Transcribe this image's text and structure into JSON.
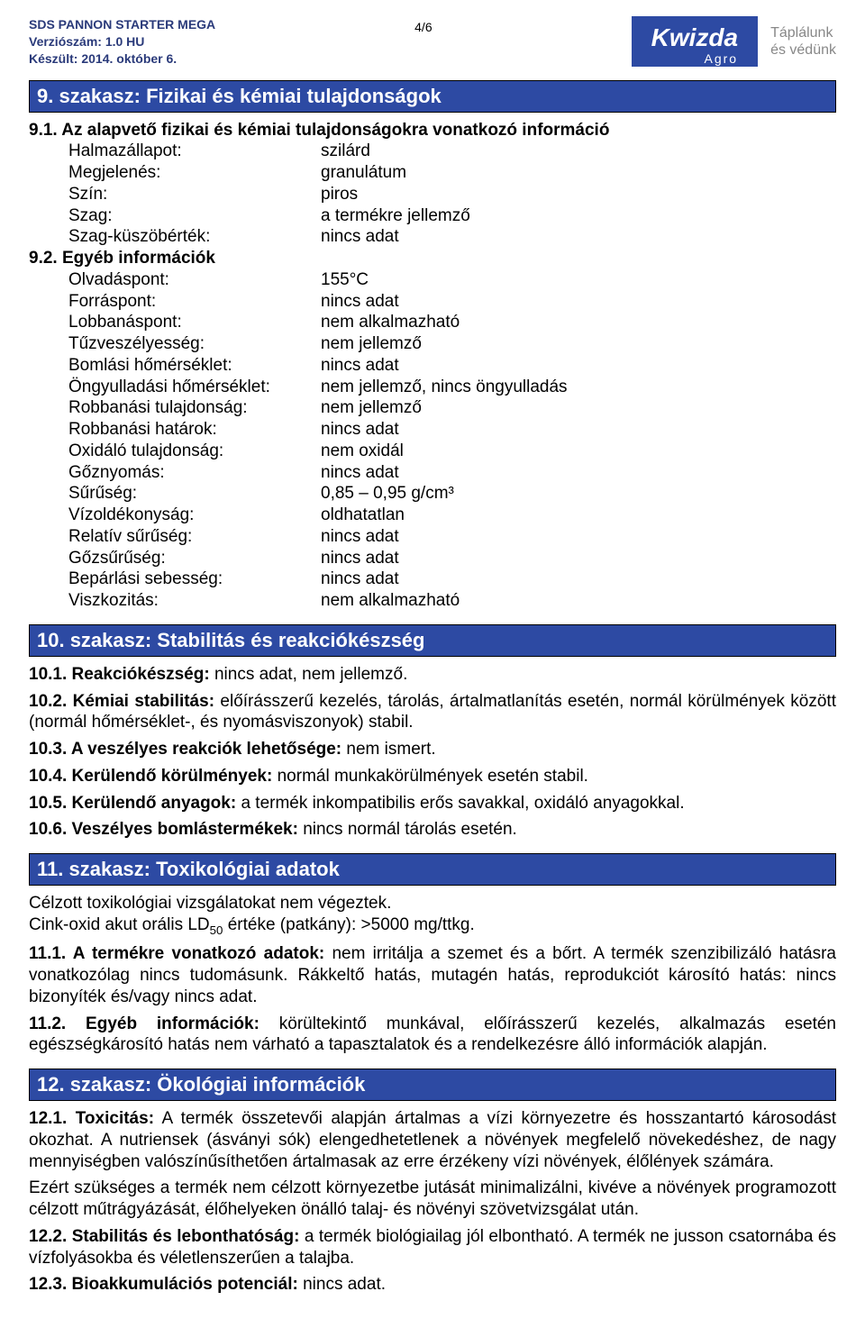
{
  "header": {
    "title": "SDS PANNON STARTER MEGA",
    "version": "Verziószám: 1.0 HU",
    "date": "Készült: 2014. október 6.",
    "page": "4/6",
    "brand": "Kwizda",
    "brand_sub": "Agro",
    "slogan_line1": "Táplálunk",
    "slogan_line2": "és védünk"
  },
  "colors": {
    "heading_bg": "#2d4aa3",
    "heading_text": "#ffffff",
    "header_text": "#2a3a7a",
    "body_text": "#000000",
    "slogan_text": "#888888"
  },
  "section9": {
    "title": "9. szakasz: Fizikai és kémiai tulajdonságok",
    "sub1": "9.1. Az alapvető fizikai és kémiai tulajdonságokra vonatkozó információ",
    "rows1": [
      {
        "k": "Halmazállapot:",
        "v": "szilárd"
      },
      {
        "k": "Megjelenés:",
        "v": "granulátum"
      },
      {
        "k": "Szín:",
        "v": "piros"
      },
      {
        "k": "Szag:",
        "v": "a termékre jellemző"
      },
      {
        "k": "Szag-küszöbérték:",
        "v": "nincs adat"
      }
    ],
    "sub2": "9.2. Egyéb információk",
    "rows2": [
      {
        "k": "Olvadáspont:",
        "v": "155°C"
      },
      {
        "k": "Forráspont:",
        "v": "nincs adat"
      },
      {
        "k": "Lobbanáspont:",
        "v": "nem alkalmazható"
      },
      {
        "k": "Tűzveszélyesség:",
        "v": "nem jellemző"
      },
      {
        "k": "Bomlási hőmérséklet:",
        "v": "nincs adat"
      },
      {
        "k": "Öngyulladási hőmérséklet:",
        "v": "nem jellemző, nincs öngyulladás"
      },
      {
        "k": "Robbanási tulajdonság:",
        "v": "nem jellemző"
      },
      {
        "k": "Robbanási határok:",
        "v": "nincs adat"
      },
      {
        "k": "Oxidáló tulajdonság:",
        "v": "nem oxidál"
      },
      {
        "k": "Gőznyomás:",
        "v": "nincs adat"
      },
      {
        "k": "Sűrűség:",
        "v": "0,85 – 0,95 g/cm³"
      },
      {
        "k": "Vízoldékonyság:",
        "v": "oldhatatlan"
      },
      {
        "k": "Relatív sűrűség:",
        "v": "nincs adat"
      },
      {
        "k": "Gőzsűrűség:",
        "v": "nincs adat"
      },
      {
        "k": "Bepárlási sebesség:",
        "v": "nincs adat"
      },
      {
        "k": "Viszkozitás:",
        "v": "nem alkalmazható"
      }
    ]
  },
  "section10": {
    "title": "10. szakasz: Stabilitás és reakciókészség",
    "p1_lead": "10.1. Reakciókészség:",
    "p1_rest": " nincs adat, nem jellemző.",
    "p2_lead": "10.2. Kémiai stabilitás:",
    "p2_rest": " előírásszerű kezelés, tárolás, ártalmatlanítás esetén, normál körülmények között (normál hőmérséklet-, és nyomásviszonyok) stabil.",
    "p3_lead": "10.3. A veszélyes reakciók lehetősége:",
    "p3_rest": " nem ismert.",
    "p4_lead": "10.4. Kerülendő körülmények:",
    "p4_rest": " normál munkakörülmények esetén stabil.",
    "p5_lead": "10.5. Kerülendő anyagok:",
    "p5_rest": " a termék inkompatibilis erős savakkal, oxidáló anyagokkal.",
    "p6_lead": "10.6. Veszélyes bomlástermékek:",
    "p6_rest": " nincs normál tárolás esetén."
  },
  "section11": {
    "title": "11. szakasz: Toxikológiai adatok",
    "p1": "Célzott toxikológiai vizsgálatokat nem végeztek.",
    "p2_pre": "Cink-oxid akut orális LD",
    "p2_sub": "50",
    "p2_post": " értéke (patkány): >5000 mg/ttkg.",
    "p3_lead": "11.1. A termékre vonatkozó adatok:",
    "p3_rest": " nem irritálja a szemet és a bőrt. A termék szenzibilizáló hatásra vonatkozólag nincs tudomásunk. Rákkeltő hatás, mutagén hatás, reprodukciót károsító hatás: nincs bizonyíték és/vagy nincs adat.",
    "p4_lead": "11.2. Egyéb információk:",
    "p4_rest": " körültekintő munkával, előírásszerű kezelés, alkalmazás esetén egészségkárosító hatás nem várható a tapasztalatok és a rendelkezésre álló információk alapján."
  },
  "section12": {
    "title": "12. szakasz: Ökológiai információk",
    "p1_lead": "12.1. Toxicitás:",
    "p1_rest": " A termék összetevői alapján ártalmas a vízi környezetre és hosszantartó károsodást okozhat. A nutriensek (ásványi sók) elengedhetetlenek a növények megfelelő növekedéshez, de nagy mennyiségben valószínűsíthetően ártalmasak az erre érzékeny vízi növények, élőlények számára.",
    "p2": "Ezért szükséges a termék nem célzott környezetbe jutását minimalizálni, kivéve a növények programozott célzott műtrágyázását, élőhelyeken önálló talaj- és növényi szövetvizsgálat után.",
    "p3_lead": "12.2. Stabilitás és lebonthatóság:",
    "p3_rest": " a termék biológiailag jól elbontható. A termék ne jusson csatornába és vízfolyásokba és véletlenszerűen a talajba.",
    "p4_lead": "12.3. Bioakkumulációs potenciál:",
    "p4_rest": " nincs adat."
  }
}
